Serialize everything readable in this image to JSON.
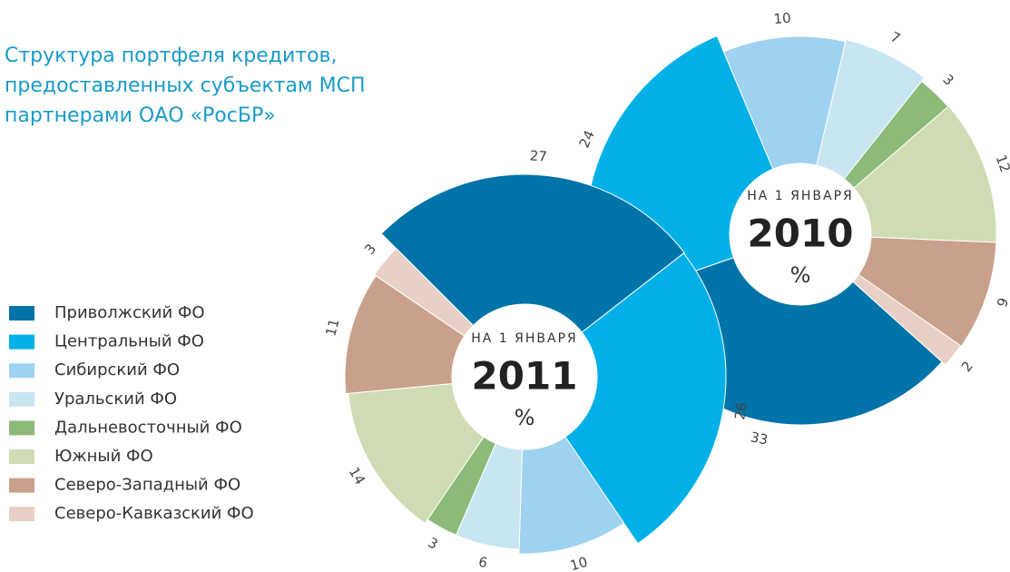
{
  "chart_data": [
    {
      "type": "pie",
      "title": [
        "Структура портфеля кредитов,",
        "предоставленных субъектам МСП",
        "партнерами ОАО «РосБР»"
      ],
      "center_label": "НА 1 ЯНВАРЯ",
      "center_year": "2011",
      "center_unit": "%",
      "categories": [
        "Приволжский ФО",
        "Центральный ФО",
        "Сибирский ФО",
        "Уральский ФО",
        "Дальневосточный ФО",
        "Южный ФО",
        "Северо-Западный ФО",
        "Северо-Кавказский ФО"
      ],
      "values": [
        27,
        26,
        10,
        6,
        3,
        14,
        11,
        3
      ],
      "colors": [
        "#0073a8",
        "#00b0e6",
        "#9fd1f0",
        "#c8e6f2",
        "#8cba78",
        "#cfdcb3",
        "#c9a08b",
        "#e8d0c6"
      ]
    },
    {
      "type": "pie",
      "center_label": "НА 1 ЯНВАРЯ",
      "center_year": "2010",
      "center_unit": "%",
      "categories": [
        "Приволжский ФО",
        "Центральный ФО",
        "Сибирский ФО",
        "Уральский ФО",
        "Дальневосточный ФО",
        "Южный ФО",
        "Северо-Западный ФО",
        "Северо-Кавказский ФО"
      ],
      "values": [
        33,
        24,
        10,
        7,
        3,
        12,
        9,
        2
      ],
      "colors": [
        "#0073a8",
        "#00b0e6",
        "#9fd1f0",
        "#c8e6f2",
        "#8cba78",
        "#cfdcb3",
        "#c9a08b",
        "#e8d0c6"
      ]
    }
  ]
}
